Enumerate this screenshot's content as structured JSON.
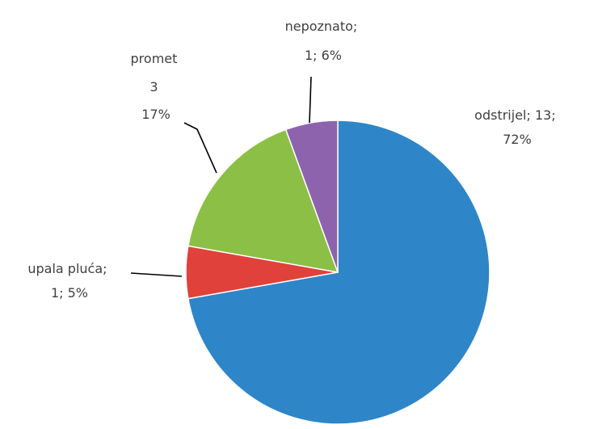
{
  "chart_data": {
    "type": "pie",
    "start_angle_deg": 0,
    "direction": "clockwise",
    "slices": [
      {
        "id": "odstrijel",
        "value": 13,
        "percent": "72%",
        "color": "#2e86c8",
        "label_lines": [
          "odstrijel; 13;",
          "72%"
        ]
      },
      {
        "id": "upala",
        "value": 1,
        "percent": "5%",
        "color": "#e0413b",
        "label_lines": [
          "upala pluća;",
          "1; 5%"
        ]
      },
      {
        "id": "promet",
        "value": 3,
        "percent": "17%",
        "color": "#8cbf45",
        "label_lines": [
          "promet",
          "3",
          "17%"
        ]
      },
      {
        "id": "nepoznato",
        "value": 1,
        "percent": "6%",
        "color": "#8e63ad",
        "label_lines": [
          "nepoznato;",
          "1; 6%"
        ]
      }
    ]
  }
}
